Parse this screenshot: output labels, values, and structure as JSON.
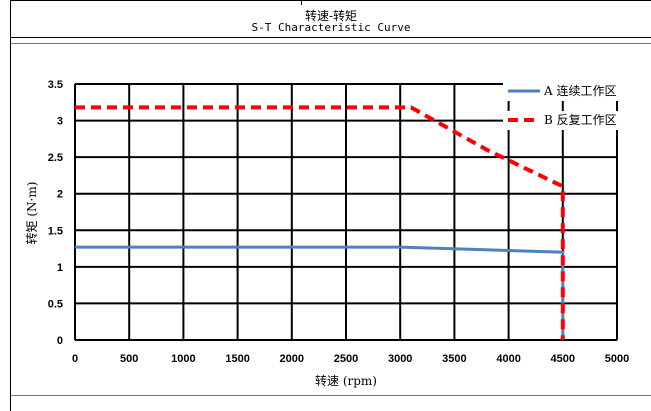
{
  "header": {
    "title_cn": "转速-转矩",
    "title_en": "S-T Characteristic Curve"
  },
  "chart_data": {
    "type": "line",
    "title": "",
    "xlabel": "转速 (rpm)",
    "ylabel": "转矩 (N·m)",
    "xlim": [
      0,
      5000
    ],
    "ylim": [
      0,
      3.5
    ],
    "x_ticks": [
      "0",
      "500",
      "1000",
      "1500",
      "2000",
      "2500",
      "3000",
      "3500",
      "4000",
      "4500",
      "5000"
    ],
    "y_ticks": [
      "0",
      "0.5",
      "1",
      "1.5",
      "2",
      "2.5",
      "3",
      "3.5"
    ],
    "grid": true,
    "legend_position": "top-right",
    "series": [
      {
        "name": "A 连续工作区",
        "color": "#4f81bd",
        "style": "solid",
        "points": [
          [
            0,
            1.27
          ],
          [
            3000,
            1.27
          ],
          [
            4500,
            1.2
          ],
          [
            4500,
            0
          ]
        ]
      },
      {
        "name": "B 反复工作区",
        "color": "#ff0000",
        "style": "dashed",
        "points": [
          [
            0,
            3.18
          ],
          [
            3100,
            3.18
          ],
          [
            3800,
            2.6
          ],
          [
            4500,
            2.1
          ],
          [
            4500,
            0
          ]
        ]
      }
    ]
  }
}
